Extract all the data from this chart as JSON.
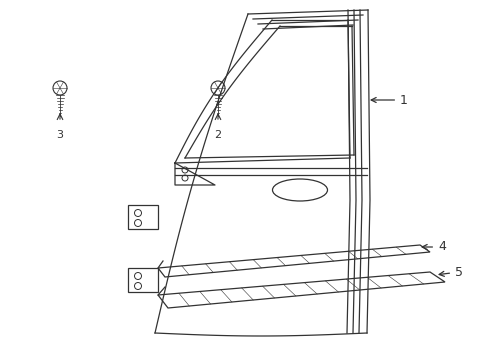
{
  "bg": "#ffffff",
  "lc": "#333333",
  "fig_w": 4.89,
  "fig_h": 3.6,
  "dpi": 100
}
